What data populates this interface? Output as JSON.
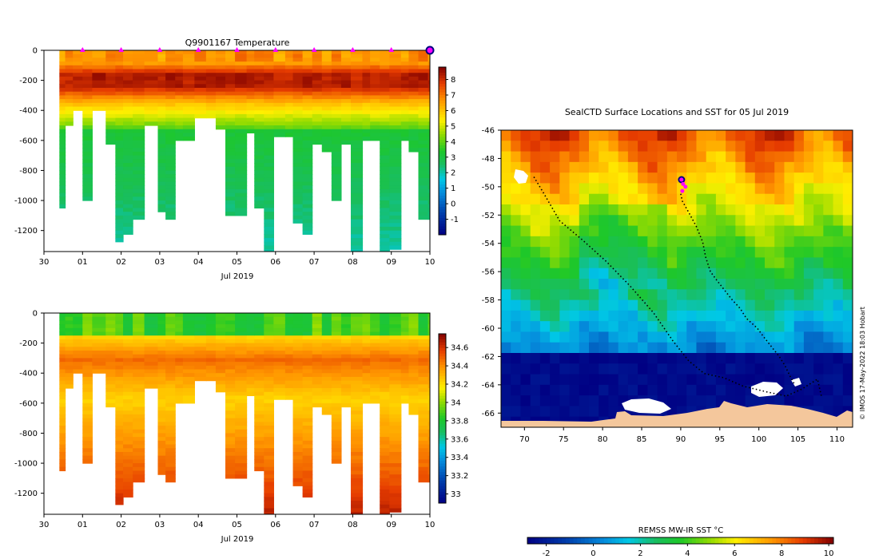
{
  "platform_id": "Q9901167",
  "colors": {
    "axis": "#000000",
    "surface_marker": "#ff00ff",
    "current_marker": "#000080",
    "track": "#000000",
    "land": "#f4c79c",
    "ice": "#ffffff"
  },
  "chart_data": [
    {
      "type": "heatmap",
      "name": "temperature_section",
      "title": "Q9901167  Temperature",
      "xlabel": "Jul 2019",
      "x_ticks": [
        "30",
        "01",
        "02",
        "03",
        "04",
        "05",
        "06",
        "07",
        "08",
        "09",
        "10"
      ],
      "x_tick_values": [
        0,
        1,
        2,
        3,
        4,
        5,
        6,
        7,
        8,
        9,
        10
      ],
      "xlim": [
        0,
        10
      ],
      "y_ticks": [
        "0",
        "-200",
        "-400",
        "-600",
        "-800",
        "-1000",
        "-1200"
      ],
      "y_tick_values": [
        0,
        -200,
        -400,
        -600,
        -800,
        -1000,
        -1200
      ],
      "ylim": [
        -1340,
        0
      ],
      "surface_markers_x": [
        1,
        2,
        3,
        4,
        5,
        6,
        7,
        8,
        9
      ],
      "current_marker_x": 10,
      "colorbar": {
        "vmin": -2,
        "vmax": 8.8,
        "ticks": [
          "-1",
          "0",
          "1",
          "2",
          "3",
          "4",
          "5",
          "6",
          "7",
          "8"
        ],
        "tick_values": [
          -1,
          0,
          1,
          2,
          3,
          4,
          5,
          6,
          7,
          8
        ]
      },
      "profiles": {
        "start_x": [
          0.4,
          0.55,
          0.75,
          1.0,
          1.25,
          1.6,
          1.85,
          2.05,
          2.3,
          2.6,
          2.95,
          3.15,
          3.4,
          3.6,
          3.9,
          4.2,
          4.45,
          4.7,
          4.95,
          5.25,
          5.45,
          5.7,
          5.95,
          6.25,
          6.45,
          6.7,
          6.95,
          7.2,
          7.45,
          7.7,
          7.95,
          8.25,
          8.45,
          8.7,
          8.95,
          9.25,
          9.45,
          9.7,
          9.95
        ],
        "end_x": [
          0.55,
          0.75,
          1.0,
          1.25,
          1.6,
          1.85,
          2.05,
          2.3,
          2.6,
          2.95,
          3.15,
          3.4,
          3.6,
          3.9,
          4.2,
          4.45,
          4.7,
          4.95,
          5.25,
          5.45,
          5.7,
          5.95,
          6.25,
          6.45,
          6.7,
          6.95,
          7.2,
          7.45,
          7.7,
          7.95,
          8.25,
          8.45,
          8.7,
          8.95,
          9.25,
          9.45,
          9.7,
          9.95,
          10.05
        ],
        "max_depth": [
          1050,
          490,
          400,
          1000,
          400,
          610,
          1255,
          1220,
          1120,
          500,
          1070,
          1120,
          580,
          580,
          450,
          450,
          520,
          1090,
          1100,
          550,
          1030,
          1340,
          570,
          570,
          1130,
          1210,
          620,
          660,
          1000,
          610,
          1340,
          590,
          580,
          1340,
          1310,
          580,
          660,
          1120,
          1120
        ]
      }
    },
    {
      "type": "heatmap",
      "name": "salinity_section",
      "title": "",
      "xlabel": "Jul 2019",
      "x_ticks": [
        "30",
        "01",
        "02",
        "03",
        "04",
        "05",
        "06",
        "07",
        "08",
        "09",
        "10"
      ],
      "x_tick_values": [
        0,
        1,
        2,
        3,
        4,
        5,
        6,
        7,
        8,
        9,
        10
      ],
      "xlim": [
        0,
        10
      ],
      "y_ticks": [
        "0",
        "-200",
        "-400",
        "-600",
        "-800",
        "-1000",
        "-1200"
      ],
      "y_tick_values": [
        0,
        -200,
        -400,
        -600,
        -800,
        -1000,
        -1200
      ],
      "ylim": [
        -1340,
        0
      ],
      "colorbar": {
        "vmin": 32.9,
        "vmax": 34.75,
        "ticks": [
          "33",
          "33.2",
          "33.4",
          "33.6",
          "33.8",
          "34",
          "34.2",
          "34.4",
          "34.6"
        ],
        "tick_values": [
          33,
          33.2,
          33.4,
          33.6,
          33.8,
          34,
          34.2,
          34.4,
          34.6
        ]
      }
    },
    {
      "type": "heatmap",
      "name": "sst_map",
      "title": "SealCTD Surface Locations and SST for 05 Jul 2019",
      "x_ticks": [
        "70",
        "75",
        "80",
        "85",
        "90",
        "95",
        "100",
        "105",
        "110"
      ],
      "x_tick_values": [
        70,
        75,
        80,
        85,
        90,
        95,
        100,
        105,
        110
      ],
      "xlim": [
        67,
        112
      ],
      "y_ticks": [
        "-46",
        "-48",
        "-50",
        "-52",
        "-54",
        "-56",
        "-58",
        "-60",
        "-62",
        "-64",
        "-66"
      ],
      "y_tick_values": [
        -46,
        -48,
        -50,
        -52,
        -54,
        -56,
        -58,
        -60,
        -62,
        -64,
        -66
      ],
      "ylim": [
        -67,
        -46
      ],
      "credit": "© IMOS 17-May-2022 18:03 Hobart",
      "track": {
        "lon": [
          71.2,
          72.5,
          74.5,
          77.5,
          80.5,
          83.5,
          86.5,
          89,
          91,
          93,
          95.5,
          98,
          101,
          103.5,
          105.5,
          107.5,
          108
        ],
        "lat": [
          -49.3,
          -50.5,
          -52.4,
          -53.8,
          -55.3,
          -57.0,
          -58.9,
          -60.9,
          -62.3,
          -63.2,
          -63.5,
          -64.1,
          -64.5,
          -64.8,
          -64.3,
          -63.6,
          -64.8
        ]
      },
      "track2": {
        "lon": [
          90,
          90.2,
          91,
          92,
          92.8,
          93.2,
          93.8,
          94.6,
          95.6,
          96.6,
          97.6,
          98.4,
          99.8,
          100.6,
          101.6,
          102.6,
          103.3,
          104.0,
          104.6
        ],
        "lat": [
          -50.5,
          -51.0,
          -51.8,
          -52.8,
          -53.9,
          -55.0,
          -56.0,
          -56.6,
          -57.3,
          -58.0,
          -58.6,
          -59.3,
          -60.0,
          -60.6,
          -61.3,
          -62.0,
          -62.6,
          -63.4,
          -64.0
        ]
      },
      "surface_locations": {
        "lon": [
          90.1,
          90.3,
          90.6,
          90.2
        ],
        "lat": [
          -49.5,
          -49.8,
          -50.0,
          -50.3
        ]
      },
      "colorbar": {
        "label": "REMSS MW-IR SST °C",
        "vmin": -2.8,
        "vmax": 10.2,
        "ticks": [
          "-2",
          "0",
          "2",
          "4",
          "6",
          "8",
          "10"
        ],
        "tick_values": [
          -2,
          0,
          2,
          4,
          6,
          8,
          10
        ]
      }
    }
  ]
}
